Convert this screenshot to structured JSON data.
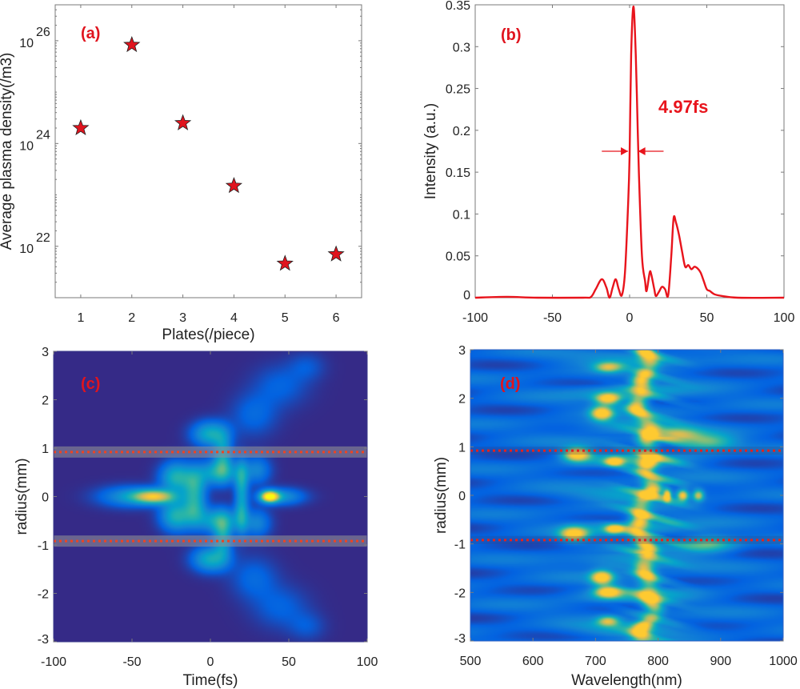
{
  "colors": {
    "marker": "#e0141e",
    "curve": "#e8141c",
    "label": "#e0141e",
    "axis": "#7a7a7a"
  },
  "chart_data": [
    {
      "panel": "(a)",
      "type": "scatter",
      "marker": "star",
      "xlabel": "Plates(/piece)",
      "ylabel": "Average plasma density(/m3)",
      "xlim": [
        0.5,
        6.5
      ],
      "ylim": [
        1e+21,
        5e+26
      ],
      "yscale": "log",
      "xticks": [
        "1",
        "2",
        "3",
        "4",
        "5",
        "6"
      ],
      "yticks": [
        {
          "base": "10",
          "exp": "22",
          "value": 1e+22
        },
        {
          "base": "10",
          "exp": "24",
          "value": 1e+24
        },
        {
          "base": "10",
          "exp": "26",
          "value": 1e+26
        }
      ],
      "x": [
        1,
        2,
        3,
        4,
        5,
        6
      ],
      "y": [
        2e+24,
        8.3e+25,
        2.5e+24,
        1.5e+23,
        4.6e+21,
        7e+21
      ]
    },
    {
      "panel": "(b)",
      "type": "line",
      "xlabel": "",
      "ylabel": "Intensity (a.u.)",
      "xlim": [
        -100,
        100
      ],
      "ylim": [
        0,
        0.35
      ],
      "xticks": [
        "-100",
        "-50",
        "0",
        "50",
        "100"
      ],
      "yticks": [
        "0",
        "0.05",
        "0.1",
        "0.15",
        "0.2",
        "0.25",
        "0.3",
        "0.35"
      ],
      "annotation": "4.97fs",
      "fwhm_level": 0.175,
      "x": [
        -100,
        -80,
        -60,
        -30,
        -25,
        -22,
        -18,
        -15,
        -13,
        -11,
        -9,
        -7,
        -5,
        -3,
        -1,
        0,
        1,
        2.5,
        4,
        5,
        6,
        8,
        10,
        11,
        13,
        14,
        16,
        17,
        19,
        21,
        23,
        25,
        27,
        28.5,
        30,
        32,
        34,
        36,
        38,
        40,
        42,
        44,
        46,
        48,
        50,
        52,
        55,
        60,
        70,
        100
      ],
      "y": [
        0,
        0.001,
        0,
        0,
        0.001,
        0.01,
        0.022,
        0.012,
        0,
        0.012,
        0.022,
        0.01,
        0.003,
        0.03,
        0.11,
        0.17,
        0.29,
        0.348,
        0.29,
        0.22,
        0.15,
        0.05,
        0.02,
        0.008,
        0.03,
        0.028,
        0.01,
        0.002,
        0.007,
        0.013,
        0.01,
        0.003,
        0.05,
        0.095,
        0.09,
        0.075,
        0.055,
        0.037,
        0.039,
        0.034,
        0.037,
        0.035,
        0.03,
        0.02,
        0.01,
        0.008,
        0.004,
        0.002,
        0,
        0
      ]
    },
    {
      "panel": "(c)",
      "type": "heatmap",
      "xlabel": "Time(fs)",
      "ylabel": "radius(mm)",
      "xlim": [
        -100,
        100
      ],
      "ylim": [
        -3,
        3
      ],
      "xticks": [
        "-100",
        "-50",
        "0",
        "50",
        "100"
      ],
      "yticks": [
        "-3",
        "-2",
        "-1",
        "0",
        "1",
        "2",
        "3"
      ],
      "colormap": "parula",
      "marked_radius_mm": [
        0.92,
        -0.92
      ],
      "features": [
        {
          "t": 38,
          "r": 0,
          "st": 4,
          "sr": 0.08,
          "v": 1.0
        },
        {
          "t": -36,
          "r": 0,
          "st": 9,
          "sr": 0.1,
          "v": 0.72
        },
        {
          "t": -52,
          "r": 0,
          "st": 14,
          "sr": 0.15,
          "v": 0.3
        },
        {
          "t": 46,
          "r": 0,
          "st": 10,
          "sr": 0.12,
          "v": 0.3
        },
        {
          "t": -22,
          "r": 0.4,
          "st": 7,
          "sr": 0.22,
          "v": 0.45
        },
        {
          "t": -22,
          "r": -0.4,
          "st": 7,
          "sr": 0.22,
          "v": 0.45
        },
        {
          "t": -10,
          "r": 0.25,
          "st": 5,
          "sr": 0.25,
          "v": 0.35
        },
        {
          "t": -10,
          "r": -0.25,
          "st": 5,
          "sr": 0.25,
          "v": 0.35
        },
        {
          "t": 5,
          "r": 0.5,
          "st": 9,
          "sr": 0.18,
          "v": 0.4
        },
        {
          "t": 5,
          "r": -0.5,
          "st": 9,
          "sr": 0.18,
          "v": 0.4
        },
        {
          "t": 0,
          "r": 1.3,
          "st": 8,
          "sr": 0.18,
          "v": 0.42
        },
        {
          "t": 0,
          "r": -1.3,
          "st": 8,
          "sr": 0.18,
          "v": 0.42
        },
        {
          "t": 8,
          "r": 0.85,
          "st": 4,
          "sr": 0.3,
          "v": 0.35
        },
        {
          "t": 8,
          "r": -0.85,
          "st": 4,
          "sr": 0.3,
          "v": 0.35
        },
        {
          "t": 20,
          "r": 0.35,
          "st": 3,
          "sr": 0.3,
          "v": 0.35
        },
        {
          "t": 20,
          "r": -0.35,
          "st": 3,
          "sr": 0.3,
          "v": 0.35
        },
        {
          "t": 30,
          "r": 0.55,
          "st": 6,
          "sr": 0.2,
          "v": 0.25
        },
        {
          "t": 30,
          "r": -0.55,
          "st": 6,
          "sr": 0.2,
          "v": 0.25
        },
        {
          "t": 28,
          "r": 1.7,
          "st": 10,
          "sr": 0.3,
          "v": 0.15
        },
        {
          "t": 28,
          "r": -1.7,
          "st": 10,
          "sr": 0.3,
          "v": 0.15
        },
        {
          "t": 45,
          "r": 2.3,
          "st": 12,
          "sr": 0.3,
          "v": 0.13
        },
        {
          "t": 45,
          "r": -2.3,
          "st": 12,
          "sr": 0.3,
          "v": 0.13
        },
        {
          "t": 62,
          "r": 2.7,
          "st": 8,
          "sr": 0.2,
          "v": 0.1
        },
        {
          "t": 62,
          "r": -2.7,
          "st": 8,
          "sr": 0.2,
          "v": 0.1
        }
      ]
    },
    {
      "panel": "(d)",
      "type": "heatmap",
      "xlabel": "Wavelength(nm)",
      "ylabel": "radius(mm)",
      "xlim": [
        500,
        1000
      ],
      "ylim": [
        -3,
        3
      ],
      "xticks": [
        "500",
        "600",
        "700",
        "800",
        "900",
        "1000"
      ],
      "yticks": [
        "-3",
        "-2",
        "-1",
        "0",
        "1",
        "2",
        "3"
      ],
      "colormap": "parula",
      "marked_radius_mm": [
        0.92,
        -0.92
      ],
      "ridge_center_nm": 780,
      "features": [
        {
          "w": 720,
          "r": 2.0,
          "sw": 14,
          "sr": 0.08,
          "v": 0.8
        },
        {
          "w": 710,
          "r": 1.7,
          "sw": 12,
          "sr": 0.1,
          "v": 0.85
        },
        {
          "w": 720,
          "r": -2.0,
          "sw": 14,
          "sr": 0.08,
          "v": 0.8
        },
        {
          "w": 710,
          "r": -1.7,
          "sw": 12,
          "sr": 0.1,
          "v": 0.85
        },
        {
          "w": 670,
          "r": 0.85,
          "sw": 15,
          "sr": 0.1,
          "v": 0.85
        },
        {
          "w": 665,
          "r": -0.8,
          "sw": 15,
          "sr": 0.1,
          "v": 0.8
        },
        {
          "w": 880,
          "r": 1.1,
          "sw": 30,
          "sr": 0.12,
          "v": 0.45
        },
        {
          "w": 880,
          "r": -1.0,
          "sw": 30,
          "sr": 0.12,
          "v": 0.45
        },
        {
          "w": 840,
          "r": 0,
          "sw": 6,
          "sr": 0.08,
          "v": 0.7
        },
        {
          "w": 865,
          "r": 0,
          "sw": 6,
          "sr": 0.08,
          "v": 0.6
        },
        {
          "w": 815,
          "r": 0,
          "sw": 4,
          "sr": 0.08,
          "v": 0.8
        },
        {
          "w": 830,
          "r": 1.25,
          "sw": 25,
          "sr": 0.1,
          "v": 0.5
        },
        {
          "w": 730,
          "r": 0.7,
          "sw": 10,
          "sr": 0.06,
          "v": 0.75
        },
        {
          "w": 730,
          "r": -0.7,
          "sw": 10,
          "sr": 0.06,
          "v": 0.75
        },
        {
          "w": 720,
          "r": 2.65,
          "sw": 15,
          "sr": 0.07,
          "v": 0.55
        },
        {
          "w": 720,
          "r": -2.6,
          "sw": 12,
          "sr": 0.07,
          "v": 0.55
        }
      ]
    }
  ]
}
